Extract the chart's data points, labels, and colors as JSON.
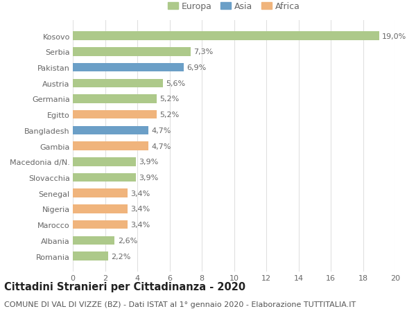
{
  "categories": [
    "Kosovo",
    "Serbia",
    "Pakistan",
    "Austria",
    "Germania",
    "Egitto",
    "Bangladesh",
    "Gambia",
    "Macedonia d/N.",
    "Slovacchia",
    "Senegal",
    "Nigeria",
    "Marocco",
    "Albania",
    "Romania"
  ],
  "values": [
    19.0,
    7.3,
    6.9,
    5.6,
    5.2,
    5.2,
    4.7,
    4.7,
    3.9,
    3.9,
    3.4,
    3.4,
    3.4,
    2.6,
    2.2
  ],
  "labels": [
    "19,0%",
    "7,3%",
    "6,9%",
    "5,6%",
    "5,2%",
    "5,2%",
    "4,7%",
    "4,7%",
    "3,9%",
    "3,9%",
    "3,4%",
    "3,4%",
    "3,4%",
    "2,6%",
    "2,2%"
  ],
  "continent": [
    "Europa",
    "Europa",
    "Asia",
    "Europa",
    "Europa",
    "Africa",
    "Asia",
    "Africa",
    "Europa",
    "Europa",
    "Africa",
    "Africa",
    "Africa",
    "Europa",
    "Europa"
  ],
  "colors": {
    "Europa": "#adc98a",
    "Asia": "#6b9fc7",
    "Africa": "#f0b47c"
  },
  "xlim": [
    0,
    20
  ],
  "xticks": [
    0,
    2,
    4,
    6,
    8,
    10,
    12,
    14,
    16,
    18,
    20
  ],
  "title": "Cittadini Stranieri per Cittadinanza - 2020",
  "subtitle": "COMUNE DI VAL DI VIZZE (BZ) - Dati ISTAT al 1° gennaio 2020 - Elaborazione TUTTITALIA.IT",
  "background_color": "#ffffff",
  "grid_color": "#e0e0e0",
  "bar_height": 0.55,
  "label_fontsize": 8,
  "tick_fontsize": 8,
  "title_fontsize": 10.5,
  "subtitle_fontsize": 8
}
